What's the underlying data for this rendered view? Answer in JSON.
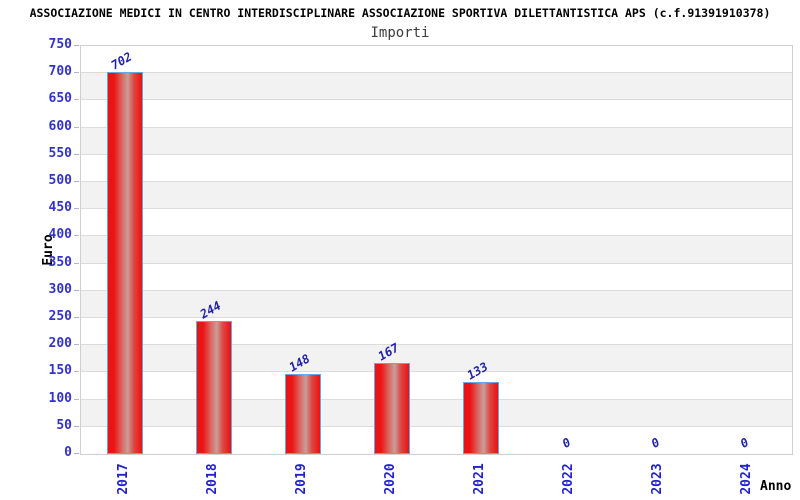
{
  "header": {
    "title": "ASSOCIAZIONE MEDICI IN CENTRO INTERDISCIPLINARE ASSOCIAZIONE SPORTIVA DILETTANTISTICA APS (c.f.91391910378)",
    "subtitle": "Importi"
  },
  "chart_data": {
    "type": "bar",
    "title": "Importi",
    "categories": [
      "2017",
      "2018",
      "2019",
      "2020",
      "2021",
      "2022",
      "2023",
      "2024"
    ],
    "values": [
      702,
      244,
      148,
      167,
      133,
      0,
      0,
      0
    ],
    "xlabel": "Anno",
    "ylabel": "Euro",
    "ylim": [
      0,
      750
    ],
    "ytick_step": 50,
    "grid": true,
    "legend": "none",
    "band_fill": "alternating horizontal stripes per 50 units",
    "colors": {
      "bar_fill": "#ea1212",
      "bar_mid_highlight": "#c99d9a",
      "bar_border": "#64a8e0",
      "axis_tick_text": "#3333cc",
      "category_text": "#2222cc",
      "value_label_text": "#2222aa",
      "band_gray": "#f2f2f2",
      "gridline": "#dcdcdc",
      "plot_border": "#d0d0d0",
      "tick_mark": "#b0b0e0",
      "title_text": "#000000",
      "subtitle_text": "#3c3c3c"
    }
  }
}
